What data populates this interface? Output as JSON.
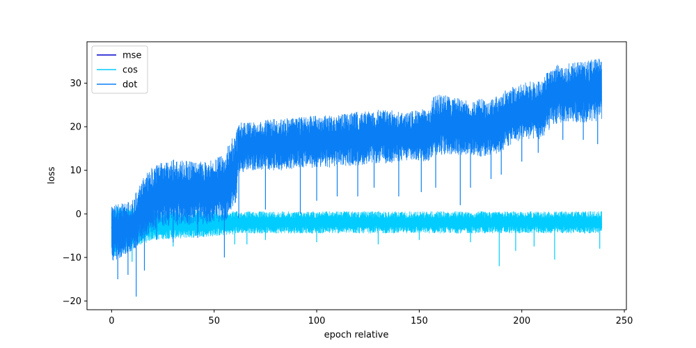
{
  "chart_data": {
    "type": "line",
    "title": "",
    "xlabel": "epoch relative",
    "ylabel": "loss",
    "xlim": [
      -12,
      251
    ],
    "ylim": [
      -22,
      39.5
    ],
    "xticks": [
      0,
      50,
      100,
      150,
      200,
      250
    ],
    "yticks": [
      -20,
      -10,
      0,
      10,
      20,
      30
    ],
    "grid": false,
    "legend": {
      "placement": "top-left",
      "entries": [
        "mse",
        "cos",
        "dot"
      ]
    },
    "series": [
      {
        "name": "mse",
        "color": "#0000cd",
        "x": [
          0,
          0.3,
          0.6,
          1.0,
          1.4,
          1.8,
          2.2
        ],
        "y": [
          -3.0,
          -5.0,
          -2.0,
          -4.0,
          -1.5,
          -3.5,
          -2.0
        ],
        "band": {
          "x": [
            0,
            1,
            2
          ],
          "lower": [
            -6.5,
            -5.5,
            -5.0
          ],
          "upper": [
            -1.0,
            -0.5,
            -1.0
          ]
        }
      },
      {
        "name": "cos",
        "color": "#00ccff",
        "x": [
          0,
          10,
          20,
          40,
          60,
          80,
          100,
          120,
          140,
          160,
          180,
          200,
          220,
          239
        ],
        "y": [
          -2.0,
          -1.5,
          -1.0,
          -1.0,
          -1.0,
          -1.0,
          -1.0,
          -1.0,
          -1.0,
          -1.0,
          -1.0,
          -1.0,
          -1.0,
          -1.0
        ],
        "band": {
          "x": [
            0,
            10,
            20,
            40,
            55,
            62,
            80,
            100,
            120,
            140,
            160,
            180,
            200,
            220,
            239
          ],
          "lower": [
            -10,
            -8,
            -6,
            -5.5,
            -5,
            -4.5,
            -4.5,
            -4.5,
            -4.5,
            -4.5,
            -4.5,
            -4.5,
            -4.5,
            -4.5,
            -4.5
          ],
          "upper": [
            2.0,
            1.5,
            1.0,
            0.8,
            0.7,
            0.6,
            0.6,
            0.6,
            0.6,
            0.6,
            0.6,
            0.6,
            0.6,
            0.6,
            0.6
          ]
        },
        "spikes": [
          [
            10,
            -11
          ],
          [
            30,
            -7.5
          ],
          [
            60,
            -7
          ],
          [
            66,
            -7
          ],
          [
            75,
            -6
          ],
          [
            100,
            -6.5
          ],
          [
            130,
            -7
          ],
          [
            150,
            -6
          ],
          [
            175,
            -6.5
          ],
          [
            189,
            -12
          ],
          [
            197,
            -8.5
          ],
          [
            206,
            -7.5
          ],
          [
            216,
            -10.5
          ],
          [
            238,
            -8
          ]
        ]
      },
      {
        "name": "dot",
        "color": "#0a7ff5",
        "x": [
          0,
          5,
          10,
          15,
          20,
          25,
          30,
          35,
          40,
          45,
          50,
          55,
          58,
          61,
          62,
          65,
          70,
          75,
          80,
          85,
          90,
          95,
          100,
          105,
          110,
          115,
          120,
          125,
          130,
          135,
          140,
          145,
          150,
          155,
          157,
          160,
          165,
          170,
          175,
          180,
          185,
          190,
          195,
          200,
          205,
          210,
          213,
          215,
          220,
          225,
          230,
          235,
          239
        ],
        "y": [
          -3,
          -2,
          -1,
          2,
          4,
          5,
          5.5,
          6,
          5.5,
          5.5,
          6,
          7,
          9,
          11,
          14,
          15,
          15,
          15,
          15.5,
          15.5,
          15.5,
          15.5,
          16,
          16,
          16,
          16.5,
          16.5,
          17,
          17,
          17,
          17,
          17,
          17.5,
          18,
          20,
          20,
          19.5,
          19,
          19,
          19.5,
          19,
          20,
          22,
          23,
          23,
          23,
          26,
          27,
          27.5,
          27.5,
          28,
          28,
          28
        ],
        "band": {
          "x": [
            0,
            5,
            10,
            15,
            20,
            25,
            30,
            35,
            40,
            45,
            50,
            55,
            58,
            61,
            62,
            65,
            70,
            75,
            80,
            85,
            90,
            95,
            100,
            105,
            110,
            115,
            120,
            125,
            130,
            135,
            140,
            145,
            150,
            155,
            157,
            160,
            165,
            170,
            175,
            180,
            185,
            190,
            195,
            200,
            205,
            210,
            213,
            215,
            220,
            225,
            230,
            235,
            239
          ],
          "lower": [
            -11,
            -10,
            -9,
            -6,
            -4,
            -3,
            -3,
            -2.5,
            -2.5,
            -2.5,
            -2,
            -2,
            0,
            3,
            9,
            9.5,
            10,
            10,
            10,
            10,
            10.5,
            10.5,
            10.5,
            10.5,
            11,
            11,
            11,
            11.5,
            11.5,
            11.5,
            12,
            12,
            12,
            12,
            13.5,
            13.5,
            13.5,
            13.5,
            13.5,
            13,
            13.5,
            14,
            16,
            17,
            17,
            17,
            19,
            20,
            21,
            21,
            21,
            21,
            21
          ],
          "upper": [
            2,
            2.5,
            3,
            8,
            11,
            12,
            12.5,
            12.5,
            12,
            12,
            12.5,
            14,
            17,
            19,
            21,
            21,
            21,
            21.5,
            22,
            22,
            22,
            22.5,
            22.5,
            23,
            23,
            23,
            23.5,
            23.5,
            24,
            24,
            23.5,
            23.5,
            24,
            24,
            27,
            27.5,
            27,
            26.5,
            26,
            26.5,
            26.5,
            27.5,
            29.5,
            30,
            30.5,
            30.5,
            33,
            34,
            34.5,
            35,
            35,
            35.5,
            36
          ]
        },
        "spikes": [
          [
            3,
            -15
          ],
          [
            8,
            -14
          ],
          [
            12,
            -19
          ],
          [
            16,
            -13
          ],
          [
            22,
            -6
          ],
          [
            30,
            -6.5
          ],
          [
            42,
            -5.5
          ],
          [
            55,
            -10
          ],
          [
            62,
            -1
          ],
          [
            75,
            1
          ],
          [
            92,
            0
          ],
          [
            100,
            3
          ],
          [
            110,
            4
          ],
          [
            120,
            4
          ],
          [
            128,
            6
          ],
          [
            140,
            4
          ],
          [
            151,
            5
          ],
          [
            158,
            6
          ],
          [
            170,
            2
          ],
          [
            175,
            6
          ],
          [
            185,
            8
          ],
          [
            190,
            9
          ],
          [
            200,
            12
          ],
          [
            208,
            14
          ],
          [
            220,
            17
          ],
          [
            230,
            17
          ],
          [
            237,
            16
          ]
        ]
      }
    ]
  }
}
